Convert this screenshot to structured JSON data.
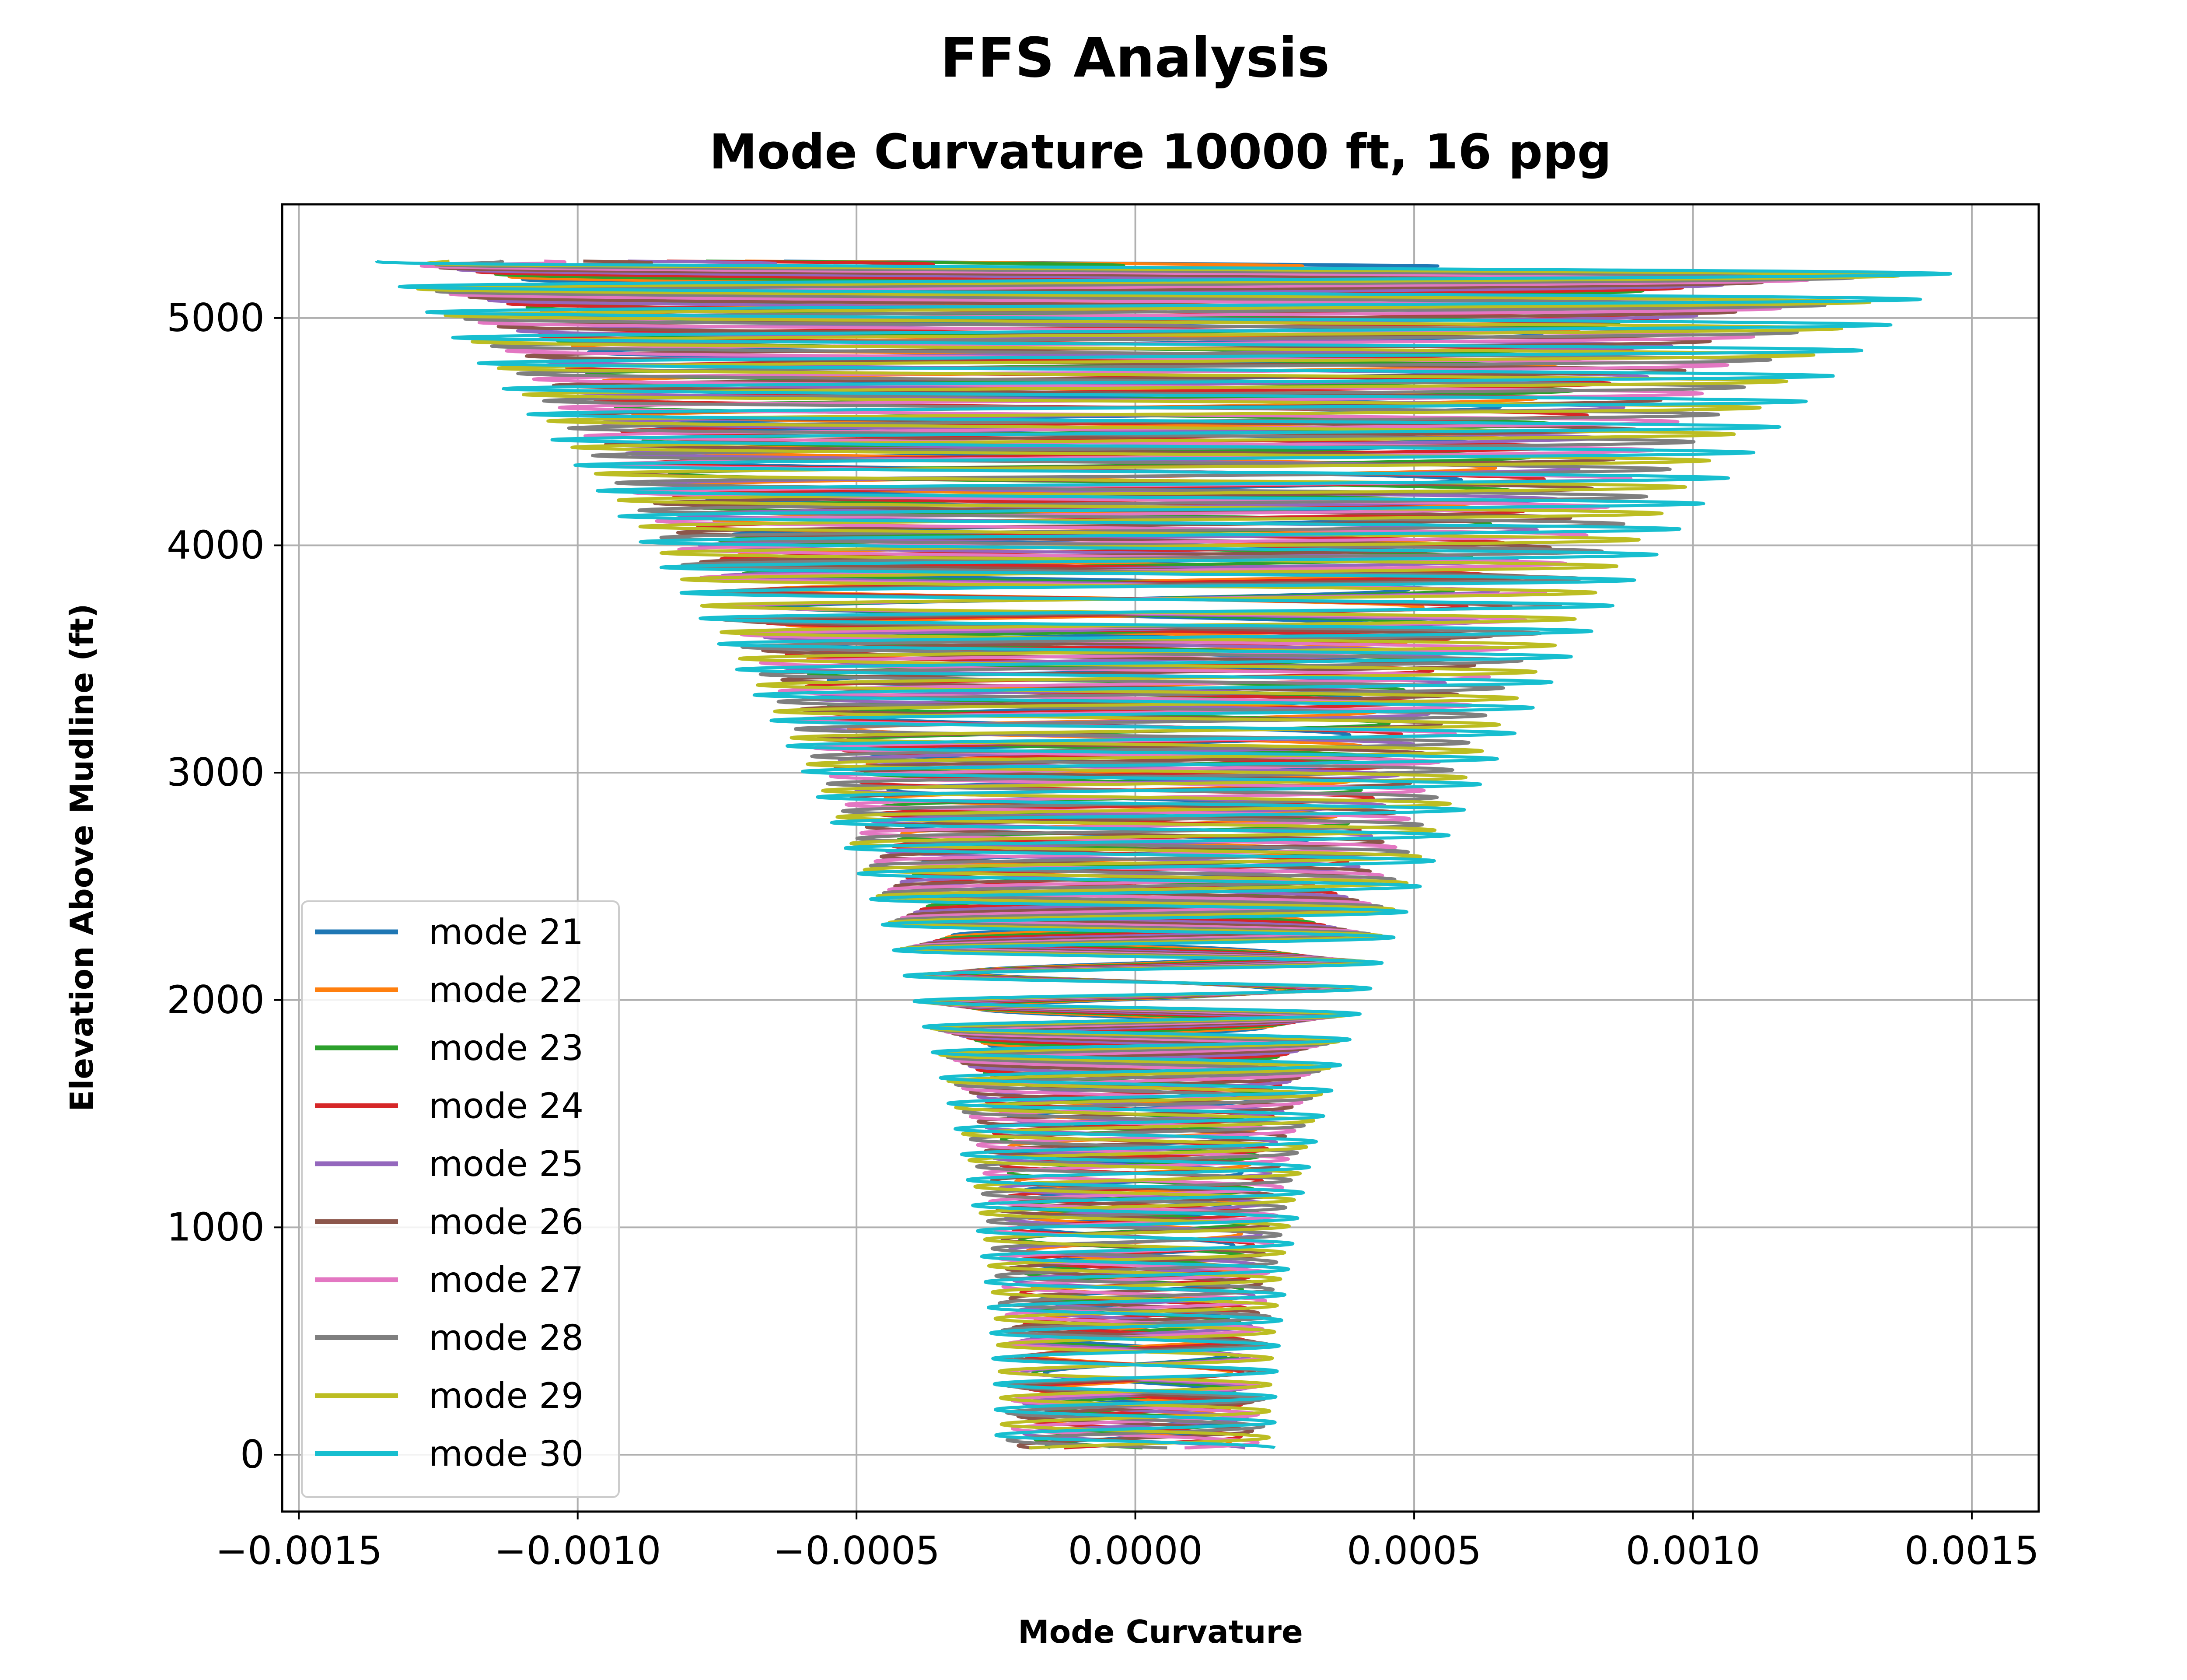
{
  "figure": {
    "suptitle": "FFS Analysis"
  },
  "chart_data": {
    "type": "line",
    "title": "Mode Curvature 10000 ft, 16 ppg",
    "xlabel": "Mode Curvature",
    "ylabel": "Elevation Above Mudline (ft)",
    "xlim": [
      -0.00153,
      0.00162
    ],
    "ylim": [
      -250,
      5500
    ],
    "xticks": [
      -0.0015,
      -0.001,
      -0.0005,
      0.0,
      0.0005,
      0.001,
      0.0015
    ],
    "xtick_labels": [
      "−0.0015",
      "−0.0010",
      "−0.0005",
      "0.0000",
      "0.0005",
      "0.0010",
      "0.0015"
    ],
    "yticks": [
      0,
      1000,
      2000,
      3000,
      4000,
      5000
    ],
    "ytick_labels": [
      "0",
      "1000",
      "2000",
      "3000",
      "4000",
      "5000"
    ],
    "grid": true,
    "legend_position": "lower-left",
    "series": [
      {
        "name": "mode 21",
        "mode": 21,
        "color": "#1f77b4",
        "top_left": -0.00063,
        "peak_right": 0.00081,
        "peak_left": -0.00113,
        "base_amp": 0.00016
      },
      {
        "name": "mode 22",
        "mode": 22,
        "color": "#ff7f0e",
        "top_left": -0.0007,
        "peak_right": 0.00088,
        "peak_left": -0.00115,
        "base_amp": 0.00017
      },
      {
        "name": "mode 23",
        "mode": 23,
        "color": "#2ca02c",
        "top_left": -0.00077,
        "peak_right": 0.00095,
        "peak_left": -0.00117,
        "base_amp": 0.00018
      },
      {
        "name": "mode 24",
        "mode": 24,
        "color": "#d62728",
        "top_left": -0.00084,
        "peak_right": 0.00102,
        "peak_left": -0.0012,
        "base_amp": 0.00019
      },
      {
        "name": "mode 25",
        "mode": 25,
        "color": "#9467bd",
        "top_left": -0.00091,
        "peak_right": 0.00109,
        "peak_left": -0.00123,
        "base_amp": 0.0002
      },
      {
        "name": "mode 26",
        "mode": 26,
        "color": "#8c564b",
        "top_left": -0.00099,
        "peak_right": 0.00116,
        "peak_left": -0.00126,
        "base_amp": 0.00021
      },
      {
        "name": "mode 27",
        "mode": 27,
        "color": "#e377c2",
        "top_left": -0.00106,
        "peak_right": 0.00124,
        "peak_left": -0.00129,
        "base_amp": 0.00022
      },
      {
        "name": "mode 28",
        "mode": 28,
        "color": "#7f7f7f",
        "top_left": -0.00114,
        "peak_right": 0.00132,
        "peak_left": -0.00131,
        "base_amp": 0.00023
      },
      {
        "name": "mode 29",
        "mode": 29,
        "color": "#bcbd22",
        "top_left": -0.00123,
        "peak_right": 0.0014,
        "peak_left": -0.00134,
        "base_amp": 0.00024
      },
      {
        "name": "mode 30",
        "mode": 30,
        "color": "#17becf",
        "top_left": -0.00136,
        "peak_right": 0.00149,
        "peak_left": -0.00137,
        "base_amp": 0.00025
      }
    ],
    "y_top": 5250,
    "y_bottom": 30
  }
}
